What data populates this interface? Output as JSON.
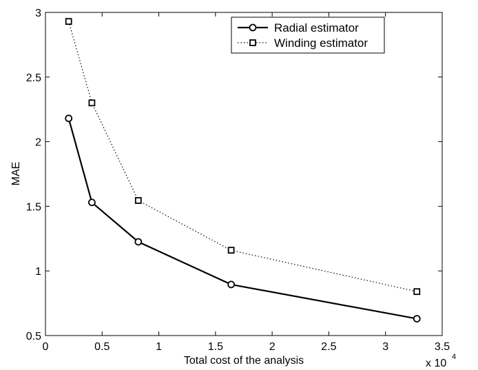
{
  "chart_data": {
    "type": "line",
    "title": "",
    "xlabel": "Total cost of the analysis",
    "ylabel": "MAE",
    "x_multiplier_label": "x 10",
    "x_multiplier_exponent": "4",
    "xlim": [
      0,
      3.5
    ],
    "ylim": [
      0.5,
      3
    ],
    "x_ticks": [
      0,
      0.5,
      1,
      1.5,
      2,
      2.5,
      3,
      3.5
    ],
    "x_tick_labels": [
      "0",
      "0.5",
      "1",
      "1.5",
      "2",
      "2.5",
      "3",
      "3.5"
    ],
    "y_ticks": [
      0.5,
      1,
      1.5,
      2,
      2.5,
      3
    ],
    "y_tick_labels": [
      "0.5",
      "1",
      "1.5",
      "2",
      "2.5",
      "3"
    ],
    "grid": false,
    "legend_position": "top-right",
    "x": [
      0.2048,
      0.4096,
      0.8192,
      1.6384,
      3.2768
    ],
    "series": [
      {
        "name": "Radial estimator",
        "values": [
          2.18,
          1.53,
          1.225,
          0.895,
          0.63
        ],
        "line_style": "solid",
        "marker": "circle",
        "color": "#000000"
      },
      {
        "name": "Winding estimator",
        "values": [
          2.93,
          2.3,
          1.545,
          1.16,
          0.84
        ],
        "line_style": "dotted",
        "marker": "square",
        "color": "#000000"
      }
    ]
  }
}
